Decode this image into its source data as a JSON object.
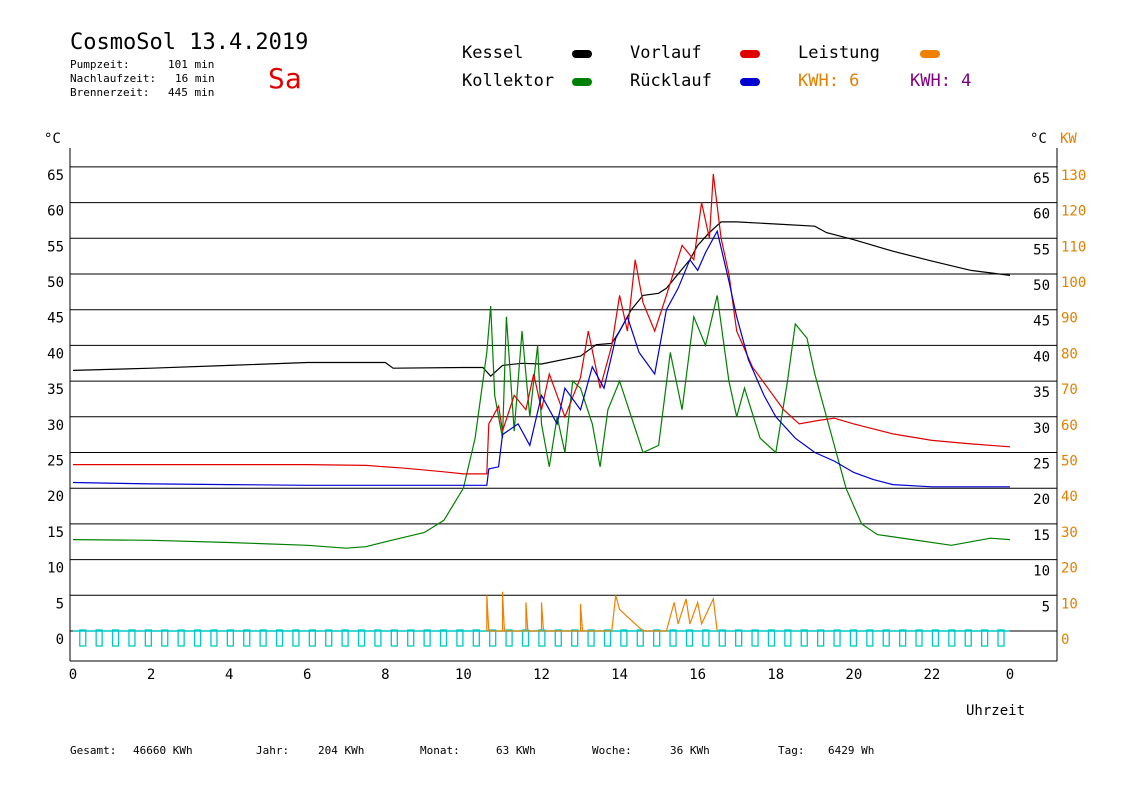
{
  "header": {
    "title": "CosmoSol 13.4.2019",
    "day": "Sa",
    "pumpzeit_label": "Pumpzeit:",
    "pumpzeit_value": "101 min",
    "nachlaufzeit_label": "Nachlaufzeit:",
    "nachlaufzeit_value": "16 min",
    "brennerzeit_label": "Brennerzeit:",
    "brennerzeit_value": "445 min"
  },
  "legend": {
    "kessel": "Kessel",
    "kollektor": "Kollektor",
    "vorlauf": "Vorlauf",
    "ruecklauf": "Rücklauf",
    "leistung": "Leistung",
    "kwh_a": "KWH: 6",
    "kwh_b": "KWH: 4"
  },
  "axes": {
    "y_left_unit": "°C",
    "y_right_unit1": "°C",
    "y_right_unit2": "KW",
    "x_label": "Uhrzeit"
  },
  "footer": {
    "gesamt_label": "Gesamt:",
    "gesamt_value": "46660 KWh",
    "jahr_label": "Jahr:",
    "jahr_value": "204 KWh",
    "monat_label": "Monat:",
    "monat_value": "63 KWh",
    "woche_label": "Woche:",
    "woche_value": "36 KWh",
    "tag_label": "Tag:",
    "tag_value": "6429 Wh"
  },
  "colors": {
    "kessel": "#000000",
    "kollektor": "#008000",
    "vorlauf": "#e00000",
    "ruecklauf": "#0000d0",
    "leistung": "#f08000",
    "kwh_b": "#800080",
    "pump": "#00c8c8",
    "right_axis_kw": "#e08000"
  },
  "chart_data": {
    "type": "line",
    "x_unit": "hour",
    "xlim": [
      0,
      24
    ],
    "ylim": [
      -5,
      70
    ],
    "y_right_kw_lim": [
      -10,
      140
    ],
    "x_ticks": [
      "0",
      "2",
      "4",
      "6",
      "8",
      "10",
      "12",
      "14",
      "16",
      "18",
      "20",
      "22",
      "0"
    ],
    "y_left_ticks": [
      0,
      5,
      10,
      15,
      20,
      25,
      30,
      35,
      40,
      45,
      50,
      55,
      60,
      65
    ],
    "y_right_temp_ticks": [
      5,
      10,
      15,
      20,
      25,
      30,
      35,
      40,
      45,
      50,
      55,
      60,
      65
    ],
    "y_right_kw_ticks": [
      0,
      10,
      20,
      30,
      40,
      50,
      60,
      70,
      80,
      90,
      100,
      110,
      120,
      130
    ],
    "series": [
      {
        "name": "Kessel",
        "key": "kessel",
        "points": [
          [
            0,
            36.5
          ],
          [
            2,
            36.8
          ],
          [
            4,
            37.2
          ],
          [
            6,
            37.6
          ],
          [
            8,
            37.6
          ],
          [
            8.2,
            36.8
          ],
          [
            10,
            36.9
          ],
          [
            10.5,
            36.9
          ],
          [
            10.7,
            35.7
          ],
          [
            11,
            37.2
          ],
          [
            11.5,
            37.5
          ],
          [
            12,
            37.4
          ],
          [
            13,
            38.5
          ],
          [
            13.4,
            40.1
          ],
          [
            13.8,
            40.3
          ],
          [
            14,
            42
          ],
          [
            14.3,
            45
          ],
          [
            14.6,
            47
          ],
          [
            15,
            47.3
          ],
          [
            15.2,
            48
          ],
          [
            15.5,
            50
          ],
          [
            15.8,
            52
          ],
          [
            16,
            54
          ],
          [
            16.3,
            55.8
          ],
          [
            16.6,
            57.3
          ],
          [
            17,
            57.3
          ],
          [
            18,
            57
          ],
          [
            19,
            56.7
          ],
          [
            19.3,
            55.8
          ],
          [
            20,
            54.8
          ],
          [
            21,
            53.2
          ],
          [
            22,
            51.8
          ],
          [
            23,
            50.5
          ],
          [
            24,
            49.8
          ]
        ]
      },
      {
        "name": "Kollektor",
        "key": "kollektor",
        "points": [
          [
            0,
            12.8
          ],
          [
            2,
            12.7
          ],
          [
            4,
            12.4
          ],
          [
            6,
            12
          ],
          [
            7,
            11.6
          ],
          [
            7.5,
            11.8
          ],
          [
            8,
            12.5
          ],
          [
            9,
            13.8
          ],
          [
            9.5,
            15.5
          ],
          [
            10,
            20
          ],
          [
            10.3,
            27
          ],
          [
            10.6,
            39
          ],
          [
            10.7,
            45.5
          ],
          [
            10.8,
            33
          ],
          [
            11,
            27
          ],
          [
            11.1,
            44
          ],
          [
            11.3,
            28
          ],
          [
            11.5,
            42
          ],
          [
            11.7,
            30
          ],
          [
            11.9,
            40
          ],
          [
            12,
            29
          ],
          [
            12.2,
            23
          ],
          [
            12.4,
            30
          ],
          [
            12.6,
            25
          ],
          [
            12.8,
            35
          ],
          [
            13,
            34
          ],
          [
            13.3,
            29
          ],
          [
            13.5,
            23
          ],
          [
            13.7,
            31
          ],
          [
            14,
            35
          ],
          [
            14.3,
            30
          ],
          [
            14.6,
            25
          ],
          [
            15,
            26
          ],
          [
            15.3,
            39
          ],
          [
            15.6,
            31
          ],
          [
            15.9,
            44
          ],
          [
            16.2,
            40
          ],
          [
            16.5,
            47
          ],
          [
            16.8,
            35
          ],
          [
            17,
            30
          ],
          [
            17.2,
            34
          ],
          [
            17.6,
            27
          ],
          [
            18,
            25
          ],
          [
            18.3,
            35
          ],
          [
            18.5,
            43
          ],
          [
            18.8,
            41
          ],
          [
            19,
            36
          ],
          [
            19.4,
            28
          ],
          [
            19.8,
            20
          ],
          [
            20.2,
            15
          ],
          [
            20.6,
            13.5
          ],
          [
            21.5,
            12.8
          ],
          [
            22.5,
            12
          ],
          [
            23.5,
            13
          ],
          [
            24,
            12.8
          ]
        ]
      },
      {
        "name": "Vorlauf",
        "key": "vorlauf",
        "points": [
          [
            0,
            23.3
          ],
          [
            2,
            23.3
          ],
          [
            4,
            23.3
          ],
          [
            6,
            23.3
          ],
          [
            7.5,
            23.2
          ],
          [
            8.5,
            22.8
          ],
          [
            9.5,
            22.3
          ],
          [
            10,
            22.0
          ],
          [
            10.6,
            22.0
          ],
          [
            10.65,
            29
          ],
          [
            10.9,
            31.5
          ],
          [
            11,
            28
          ],
          [
            11.3,
            33
          ],
          [
            11.6,
            31
          ],
          [
            11.8,
            36
          ],
          [
            12,
            31
          ],
          [
            12.2,
            36
          ],
          [
            12.6,
            30
          ],
          [
            13,
            35.5
          ],
          [
            13.2,
            42
          ],
          [
            13.5,
            34
          ],
          [
            13.8,
            40
          ],
          [
            14,
            47
          ],
          [
            14.2,
            42
          ],
          [
            14.4,
            52
          ],
          [
            14.6,
            46
          ],
          [
            14.9,
            42
          ],
          [
            15.2,
            47
          ],
          [
            15.6,
            54
          ],
          [
            15.9,
            52
          ],
          [
            16.1,
            60
          ],
          [
            16.3,
            55
          ],
          [
            16.4,
            64
          ],
          [
            16.6,
            55
          ],
          [
            16.8,
            50
          ],
          [
            17,
            42
          ],
          [
            17.4,
            37
          ],
          [
            17.8,
            34
          ],
          [
            18.2,
            31
          ],
          [
            18.6,
            29
          ],
          [
            19.1,
            29.5
          ],
          [
            19.5,
            29.8
          ],
          [
            20,
            29
          ],
          [
            21,
            27.6
          ],
          [
            22,
            26.7
          ],
          [
            23,
            26.2
          ],
          [
            24,
            25.8
          ]
        ]
      },
      {
        "name": "Rücklauf",
        "key": "ruecklauf",
        "points": [
          [
            0,
            20.8
          ],
          [
            2,
            20.6
          ],
          [
            4,
            20.5
          ],
          [
            6,
            20.4
          ],
          [
            8,
            20.4
          ],
          [
            10,
            20.4
          ],
          [
            10.6,
            20.4
          ],
          [
            10.65,
            22.7
          ],
          [
            10.9,
            23
          ],
          [
            11,
            27.5
          ],
          [
            11.4,
            29
          ],
          [
            11.7,
            26
          ],
          [
            12,
            33
          ],
          [
            12.4,
            29
          ],
          [
            12.6,
            34
          ],
          [
            13,
            31
          ],
          [
            13.3,
            37
          ],
          [
            13.6,
            34
          ],
          [
            13.9,
            41
          ],
          [
            14.2,
            44
          ],
          [
            14.5,
            39
          ],
          [
            14.9,
            36
          ],
          [
            15.2,
            45
          ],
          [
            15.5,
            48
          ],
          [
            15.8,
            52
          ],
          [
            16,
            50.5
          ],
          [
            16.2,
            53
          ],
          [
            16.5,
            56
          ],
          [
            16.8,
            49
          ],
          [
            17,
            44
          ],
          [
            17.3,
            38
          ],
          [
            17.7,
            33
          ],
          [
            18,
            30
          ],
          [
            18.5,
            27
          ],
          [
            19,
            25
          ],
          [
            19.5,
            23.8
          ],
          [
            20,
            22.2
          ],
          [
            20.5,
            21.2
          ],
          [
            21,
            20.5
          ],
          [
            22,
            20.2
          ],
          [
            23,
            20.2
          ],
          [
            24,
            20.2
          ]
        ]
      },
      {
        "name": "Leistung",
        "key": "leistung",
        "points": [
          [
            10.6,
            0
          ],
          [
            10.6,
            5
          ],
          [
            10.65,
            0
          ],
          [
            11,
            0
          ],
          [
            11,
            5.5
          ],
          [
            11.05,
            0
          ],
          [
            11.6,
            0
          ],
          [
            11.6,
            4
          ],
          [
            11.65,
            0
          ],
          [
            12,
            0
          ],
          [
            12,
            4
          ],
          [
            12.05,
            0
          ],
          [
            13,
            0
          ],
          [
            13,
            3.8
          ],
          [
            13.05,
            0
          ],
          [
            13.8,
            0
          ],
          [
            13.9,
            5
          ],
          [
            14,
            3
          ],
          [
            14.2,
            2
          ],
          [
            14.4,
            1
          ],
          [
            14.6,
            0
          ],
          [
            15.2,
            0
          ],
          [
            15.4,
            4
          ],
          [
            15.5,
            1
          ],
          [
            15.7,
            4.5
          ],
          [
            15.8,
            1
          ],
          [
            16,
            4
          ],
          [
            16.1,
            1
          ],
          [
            16.4,
            4.5
          ],
          [
            16.5,
            0
          ]
        ]
      },
      {
        "name": "Pumpe",
        "key": "pump",
        "points": []
      }
    ]
  }
}
